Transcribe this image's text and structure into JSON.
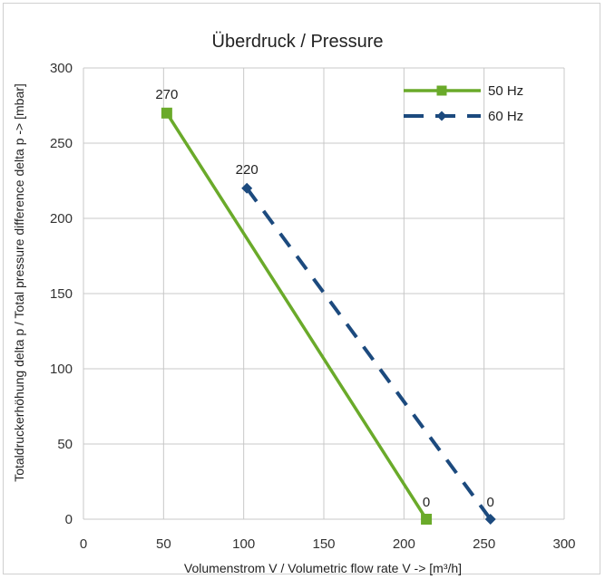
{
  "chart_data": {
    "type": "line",
    "title": "Überdruck / Pressure",
    "xlabel": "Volumenstrom V / Volumetric flow rate V -> [m³/h]",
    "ylabel": "Totaldruckerhöhung delta p / Total pressure difference delta p -> [mbar]",
    "xlim": [
      0,
      300
    ],
    "ylim": [
      0,
      300
    ],
    "xticks": [
      "0",
      "50",
      "100",
      "150",
      "200",
      "250",
      "300"
    ],
    "yticks": [
      "0",
      "50",
      "100",
      "150",
      "200",
      "250",
      "300"
    ],
    "grid": true,
    "legend_position": "top-right",
    "series": [
      {
        "name": "50 Hz",
        "color": "#6aaa2a",
        "style": "solid",
        "marker": "square",
        "x": [
          52,
          214
        ],
        "y": [
          270,
          0
        ],
        "labels": [
          "270",
          "0"
        ]
      },
      {
        "name": "60 Hz",
        "color": "#1c4a7e",
        "style": "dashed",
        "marker": "diamond",
        "x": [
          102,
          254
        ],
        "y": [
          220,
          0
        ],
        "labels": [
          "220",
          "0"
        ]
      }
    ]
  }
}
